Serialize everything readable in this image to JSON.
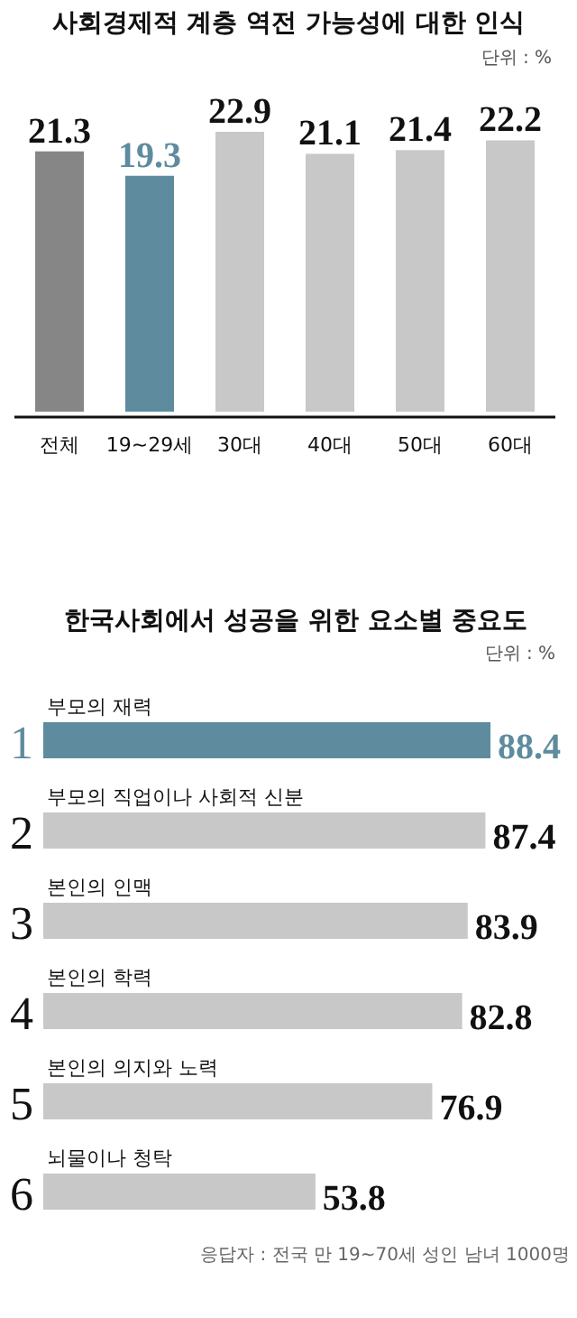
{
  "chart_data": [
    {
      "type": "bar",
      "title": "사회경제적 계층 역전 가능성에 대한 인식",
      "subtitle": "단위 : %",
      "categories": [
        "전체",
        "19~29세",
        "30대",
        "40대",
        "50대",
        "60대"
      ],
      "values": [
        21.3,
        19.3,
        22.9,
        21.1,
        21.4,
        22.2
      ],
      "colors": [
        "#868686",
        "#5e8c9e",
        "#c8c8c8",
        "#c8c8c8",
        "#c8c8c8",
        "#c8c8c8"
      ],
      "data_labels": true
    },
    {
      "type": "bar",
      "orientation": "horizontal",
      "title": "한국사회에서 성공을 위한 요소별 중요도",
      "subtitle": "단위 : %",
      "categories": [
        "부모의 재력",
        "부모의 직업이나 사회적 신분",
        "본인의 인맥",
        "본인의 학력",
        "본인의 의지와 노력",
        "뇌물이나 청탁"
      ],
      "values": [
        88.4,
        87.4,
        83.9,
        82.8,
        76.9,
        53.8
      ],
      "colors": [
        "#5e8c9e",
        "#c8c8c8",
        "#c8c8c8",
        "#c8c8c8",
        "#c8c8c8",
        "#c8c8c8"
      ],
      "data_labels": true,
      "annotations": [
        "1",
        "2",
        "3",
        "4",
        "5",
        "6",
        "응답자 : 전국 만 19~70세 성인 남녀 1000명"
      ]
    }
  ]
}
